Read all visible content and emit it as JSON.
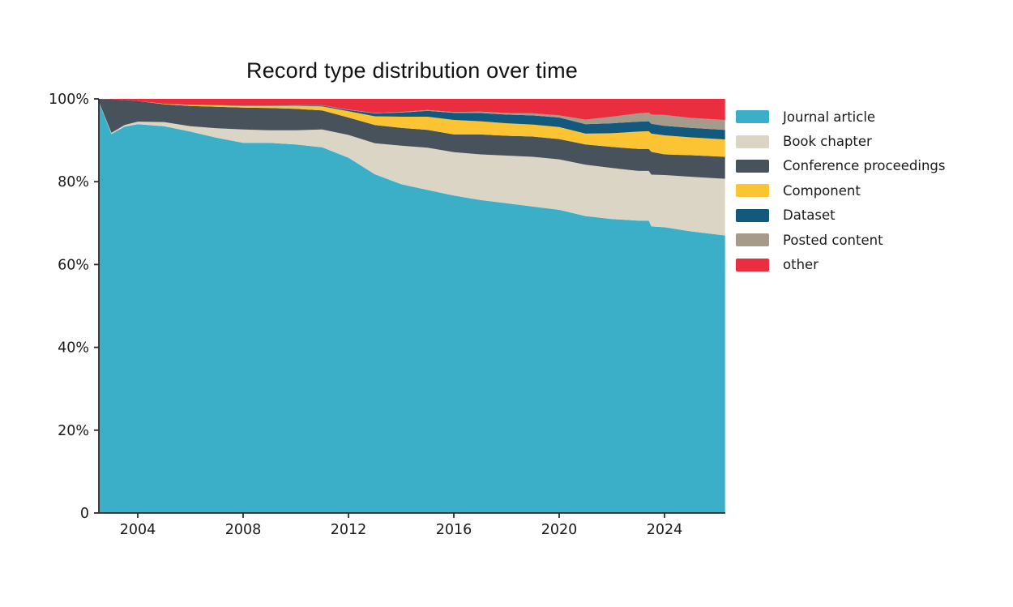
{
  "page": {
    "background": "#ffffff"
  },
  "chart": {
    "title": "Record type distribution over time",
    "y_tick_labels": [
      "0",
      "20%",
      "40%",
      "60%",
      "80%",
      "100%"
    ],
    "y_tick_values": [
      0,
      20,
      40,
      60,
      80,
      100
    ],
    "x_tick_labels": [
      "2004",
      "2008",
      "2012",
      "2016",
      "2020",
      "2024"
    ],
    "x_tick_values": [
      2004,
      2008,
      2012,
      2016,
      2020,
      2024
    ],
    "axis_color": "#2b2b2b",
    "tick_label_color": "#1a1a1a"
  },
  "chart_data": {
    "type": "area",
    "stacked": true,
    "normalized_percent": true,
    "title": "Record type distribution over time",
    "xlabel": "",
    "ylabel": "",
    "xlim": [
      2002.5,
      2026.3
    ],
    "ylim": [
      0,
      100
    ],
    "grid": false,
    "legend_position": "right",
    "x": [
      2002.5,
      2003,
      2003.5,
      2004,
      2005,
      2006,
      2007,
      2008,
      2009,
      2010,
      2011,
      2012,
      2013,
      2014,
      2015,
      2016,
      2017,
      2018,
      2019,
      2020,
      2021,
      2022,
      2023,
      2023.4,
      2023.5,
      2024,
      2025,
      2026.3
    ],
    "series": [
      {
        "name": "Journal article",
        "color": "#3BAFC7",
        "values": [
          99.2,
          91.5,
          93.3,
          93.9,
          93.4,
          92.1,
          90.6,
          89.4,
          89.4,
          89.0,
          88.3,
          85.8,
          81.8,
          79.4,
          78.0,
          76.8,
          75.6,
          74.8,
          74.0,
          73.2,
          71.7,
          71.0,
          70.6,
          70.6,
          69.2,
          69.0,
          68.0,
          67.0
        ]
      },
      {
        "name": "Book chapter",
        "color": "#DBD5C5",
        "values": [
          0.1,
          0.3,
          0.4,
          0.6,
          1.0,
          1.3,
          2.3,
          3.2,
          3.0,
          3.4,
          4.3,
          5.5,
          7.5,
          9.3,
          10.2,
          10.5,
          11.0,
          11.5,
          12.0,
          12.2,
          12.4,
          12.3,
          12.0,
          12.0,
          12.5,
          12.6,
          13.2,
          13.7
        ]
      },
      {
        "name": "Conference proceedings",
        "color": "#47525A",
        "values": [
          0.7,
          8.1,
          6.0,
          5.0,
          4.3,
          4.9,
          5.2,
          5.3,
          5.4,
          5.2,
          4.6,
          4.2,
          4.4,
          4.3,
          4.3,
          4.3,
          4.8,
          4.8,
          4.9,
          4.9,
          4.9,
          5.1,
          5.3,
          5.3,
          5.5,
          5.0,
          5.2,
          5.3
        ]
      },
      {
        "name": "Component",
        "color": "#FCC433",
        "values": [
          0.0,
          0.0,
          0.0,
          0.0,
          0.1,
          0.3,
          0.35,
          0.4,
          0.5,
          0.7,
          1.0,
          1.5,
          2.1,
          2.7,
          3.2,
          3.5,
          3.2,
          3.0,
          2.9,
          2.9,
          2.6,
          3.3,
          4.2,
          4.3,
          4.4,
          4.6,
          4.3,
          4.2
        ]
      },
      {
        "name": "Dataset",
        "color": "#12597D",
        "values": [
          0.0,
          0.0,
          0.0,
          0.0,
          0.0,
          0.0,
          0.05,
          0.1,
          0.1,
          0.1,
          0.2,
          0.3,
          0.7,
          1.0,
          1.4,
          1.7,
          2.0,
          2.1,
          2.2,
          2.3,
          2.3,
          2.4,
          2.4,
          2.4,
          2.4,
          2.3,
          2.3,
          2.3
        ]
      },
      {
        "name": "Posted content",
        "color": "#A69A8B",
        "values": [
          0.0,
          0.0,
          0.0,
          0.0,
          0.0,
          0.0,
          0.0,
          0.0,
          0.0,
          0.05,
          0.05,
          0.1,
          0.1,
          0.15,
          0.2,
          0.2,
          0.3,
          0.4,
          0.5,
          0.5,
          1.1,
          1.6,
          2.0,
          2.1,
          2.2,
          2.6,
          2.4,
          2.4
        ]
      },
      {
        "name": "other",
        "color": "#EA2E3F",
        "values": [
          0.0,
          0.1,
          0.3,
          0.5,
          1.2,
          1.4,
          1.5,
          1.6,
          1.6,
          1.55,
          1.55,
          2.6,
          3.4,
          3.15,
          2.7,
          3.2,
          3.1,
          3.4,
          3.5,
          4.0,
          5.0,
          4.3,
          3.5,
          3.3,
          3.8,
          3.9,
          4.6,
          5.1
        ]
      }
    ]
  }
}
